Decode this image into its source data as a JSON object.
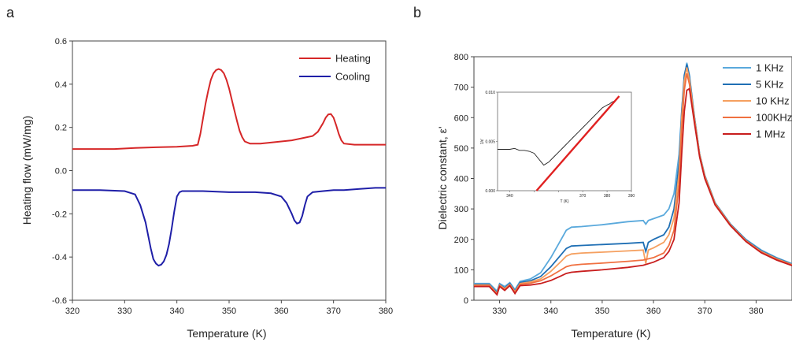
{
  "chart_data": [
    {
      "panel_label": "a",
      "type": "line",
      "xlabel": "Temperature (K)",
      "ylabel": "Heating flow (mW/mg)",
      "xlim": [
        320,
        380
      ],
      "ylim": [
        -0.6,
        0.6
      ],
      "xticks": [
        320,
        330,
        340,
        350,
        360,
        370,
        380
      ],
      "yticks": [
        -0.6,
        -0.4,
        -0.2,
        0.0,
        0.2,
        0.4,
        0.6
      ],
      "ytick_labels": [
        "-0.6",
        "-0.4",
        "-0.2",
        "0.0",
        "0.2",
        "0.4",
        "0.6"
      ],
      "legend_position": "top-right",
      "series": [
        {
          "name": "Heating",
          "color": "#d62728",
          "x": [
            320,
            324,
            328,
            332,
            336,
            340,
            343,
            344,
            344.5,
            345,
            345.5,
            346,
            346.5,
            347,
            347.5,
            348,
            348.5,
            349,
            349.5,
            350,
            350.5,
            351,
            351.5,
            352,
            352.5,
            353,
            354,
            356,
            358,
            360,
            362,
            364,
            366,
            367,
            367.5,
            368,
            368.5,
            369,
            369.5,
            370,
            370.5,
            371,
            371.5,
            372,
            374,
            377,
            380
          ],
          "y": [
            0.1,
            0.1,
            0.1,
            0.105,
            0.108,
            0.11,
            0.115,
            0.12,
            0.17,
            0.24,
            0.31,
            0.37,
            0.42,
            0.45,
            0.465,
            0.47,
            0.465,
            0.45,
            0.42,
            0.38,
            0.33,
            0.28,
            0.23,
            0.185,
            0.155,
            0.135,
            0.125,
            0.125,
            0.13,
            0.135,
            0.14,
            0.15,
            0.16,
            0.18,
            0.2,
            0.22,
            0.245,
            0.26,
            0.262,
            0.245,
            0.21,
            0.17,
            0.14,
            0.125,
            0.12,
            0.12,
            0.12
          ]
        },
        {
          "name": "Cooling",
          "color": "#1f1fa8",
          "x": [
            320,
            325,
            330,
            332,
            333,
            334,
            334.5,
            335,
            335.5,
            336,
            336.5,
            337,
            337.5,
            338,
            338.5,
            339,
            339.5,
            340,
            340.5,
            341,
            345,
            350,
            355,
            358,
            360,
            361,
            362,
            362.5,
            363,
            363.5,
            364,
            364.5,
            365,
            366,
            368,
            370,
            372,
            375,
            378,
            380
          ],
          "y": [
            -0.09,
            -0.09,
            -0.095,
            -0.11,
            -0.16,
            -0.24,
            -0.3,
            -0.36,
            -0.41,
            -0.43,
            -0.44,
            -0.435,
            -0.42,
            -0.39,
            -0.34,
            -0.27,
            -0.19,
            -0.12,
            -0.1,
            -0.095,
            -0.095,
            -0.1,
            -0.1,
            -0.105,
            -0.12,
            -0.15,
            -0.2,
            -0.23,
            -0.245,
            -0.24,
            -0.21,
            -0.16,
            -0.12,
            -0.1,
            -0.095,
            -0.09,
            -0.09,
            -0.085,
            -0.08,
            -0.08
          ]
        }
      ]
    },
    {
      "panel_label": "b",
      "type": "line",
      "xlabel": "Temperature (K)",
      "ylabel": "Dielectric constant, ε'",
      "xlim": [
        325,
        387
      ],
      "ylim": [
        0,
        800
      ],
      "xticks": [
        330,
        340,
        350,
        360,
        370,
        380
      ],
      "yticks": [
        0,
        100,
        200,
        300,
        400,
        500,
        600,
        700,
        800
      ],
      "legend_position": "top-right",
      "series": [
        {
          "name": "1   KHz",
          "color": "#5aa9dc",
          "x": [
            325,
            328,
            329.5,
            330,
            331,
            332,
            333,
            334,
            336,
            338,
            340,
            342,
            343,
            344,
            346,
            350,
            355,
            358,
            358.5,
            359,
            360,
            362,
            363,
            364,
            365,
            365.5,
            366,
            366.5,
            367,
            368,
            369,
            370,
            372,
            375,
            378,
            381,
            384,
            387
          ],
          "y": [
            55,
            55,
            30,
            55,
            45,
            58,
            35,
            62,
            70,
            90,
            140,
            200,
            230,
            240,
            242,
            248,
            258,
            262,
            250,
            262,
            268,
            280,
            300,
            350,
            480,
            620,
            730,
            780,
            740,
            600,
            480,
            410,
            320,
            250,
            200,
            165,
            140,
            120
          ]
        },
        {
          "name": "5   KHz",
          "color": "#1f6fb4",
          "x": [
            325,
            328,
            329.5,
            330,
            331,
            332,
            333,
            334,
            336,
            338,
            340,
            342,
            343,
            344,
            346,
            350,
            355,
            358,
            358.5,
            359,
            360,
            362,
            363,
            364,
            365,
            365.5,
            366,
            366.5,
            367,
            368,
            369,
            370,
            372,
            375,
            378,
            381,
            384,
            387
          ],
          "y": [
            52,
            52,
            25,
            52,
            40,
            55,
            30,
            58,
            64,
            78,
            110,
            150,
            170,
            178,
            180,
            183,
            187,
            190,
            160,
            190,
            200,
            215,
            240,
            300,
            450,
            620,
            740,
            775,
            735,
            600,
            480,
            410,
            320,
            250,
            198,
            162,
            138,
            118
          ]
        },
        {
          "name": "10  KHz",
          "color": "#f5a060",
          "x": [
            325,
            328,
            329.5,
            330,
            331,
            332,
            333,
            334,
            336,
            338,
            340,
            342,
            343,
            344,
            346,
            350,
            355,
            358,
            358.5,
            359,
            360,
            362,
            363,
            364,
            365,
            365.5,
            366,
            366.5,
            367,
            368,
            369,
            370,
            372,
            375,
            378,
            381,
            384,
            387
          ],
          "y": [
            50,
            50,
            22,
            50,
            38,
            52,
            28,
            55,
            60,
            70,
            95,
            128,
            145,
            152,
            155,
            158,
            162,
            165,
            120,
            165,
            172,
            190,
            215,
            270,
            420,
            600,
            720,
            765,
            725,
            595,
            478,
            408,
            318,
            248,
            196,
            160,
            136,
            117
          ]
        },
        {
          "name": "100KHz",
          "color": "#f07040",
          "x": [
            325,
            328,
            329.5,
            330,
            331,
            332,
            333,
            334,
            336,
            338,
            340,
            342,
            343,
            344,
            346,
            350,
            355,
            358,
            360,
            362,
            363,
            364,
            365,
            365.5,
            366,
            366.5,
            367,
            368,
            369,
            370,
            372,
            375,
            378,
            381,
            384,
            387
          ],
          "y": [
            48,
            48,
            20,
            48,
            35,
            50,
            25,
            52,
            56,
            64,
            80,
            100,
            110,
            115,
            118,
            122,
            128,
            132,
            140,
            155,
            180,
            230,
            380,
            560,
            690,
            745,
            710,
            590,
            475,
            405,
            316,
            247,
            195,
            158,
            134,
            116
          ]
        },
        {
          "name": "1   MHz",
          "color": "#c81e1e",
          "x": [
            325,
            328,
            329.5,
            330,
            331,
            332,
            333,
            334,
            336,
            338,
            340,
            342,
            343,
            344,
            346,
            350,
            355,
            358,
            360,
            362,
            363,
            364,
            365,
            365.5,
            366,
            366.5,
            367,
            368,
            369,
            370,
            372,
            375,
            378,
            381,
            384,
            387
          ],
          "y": [
            45,
            45,
            18,
            45,
            32,
            48,
            22,
            48,
            50,
            55,
            65,
            80,
            88,
            92,
            95,
            100,
            108,
            115,
            125,
            140,
            160,
            200,
            320,
            480,
            620,
            690,
            695,
            580,
            470,
            400,
            313,
            245,
            193,
            156,
            132,
            114
          ]
        }
      ],
      "inset": {
        "type": "line",
        "ylabel": "1/ε'",
        "xlabel": "T (K)",
        "xlim": [
          335,
          390
        ],
        "ylim": [
          0.0,
          0.01
        ],
        "xticks": [
          340,
          350,
          360,
          370,
          380,
          390
        ],
        "xtick_labels": [
          "340",
          "",
          "",
          "370",
          "380",
          "390"
        ],
        "yticks": [
          0.0,
          0.005,
          0.01
        ],
        "ytick_labels": [
          "0.000",
          "0.005",
          "0.010"
        ],
        "data": {
          "color": "#222222",
          "x": [
            335,
            338,
            340,
            342,
            344,
            346,
            348,
            350,
            352,
            353,
            354,
            356,
            358,
            360,
            362,
            364,
            366,
            368,
            370,
            372,
            374,
            376,
            378,
            380,
            381,
            382,
            383,
            384
          ],
          "y": [
            0.0042,
            0.0042,
            0.0042,
            0.0043,
            0.0041,
            0.0041,
            0.004,
            0.0038,
            0.0032,
            0.0029,
            0.0026,
            0.0029,
            0.0034,
            0.0039,
            0.0044,
            0.0049,
            0.0054,
            0.0059,
            0.0064,
            0.0069,
            0.0074,
            0.0079,
            0.0084,
            0.0087,
            0.0088,
            0.009,
            0.0091,
            0.0093
          ]
        },
        "fit": {
          "color": "#e02020",
          "x": [
            351,
            385
          ],
          "y": [
            0.0,
            0.0096
          ]
        }
      }
    }
  ]
}
